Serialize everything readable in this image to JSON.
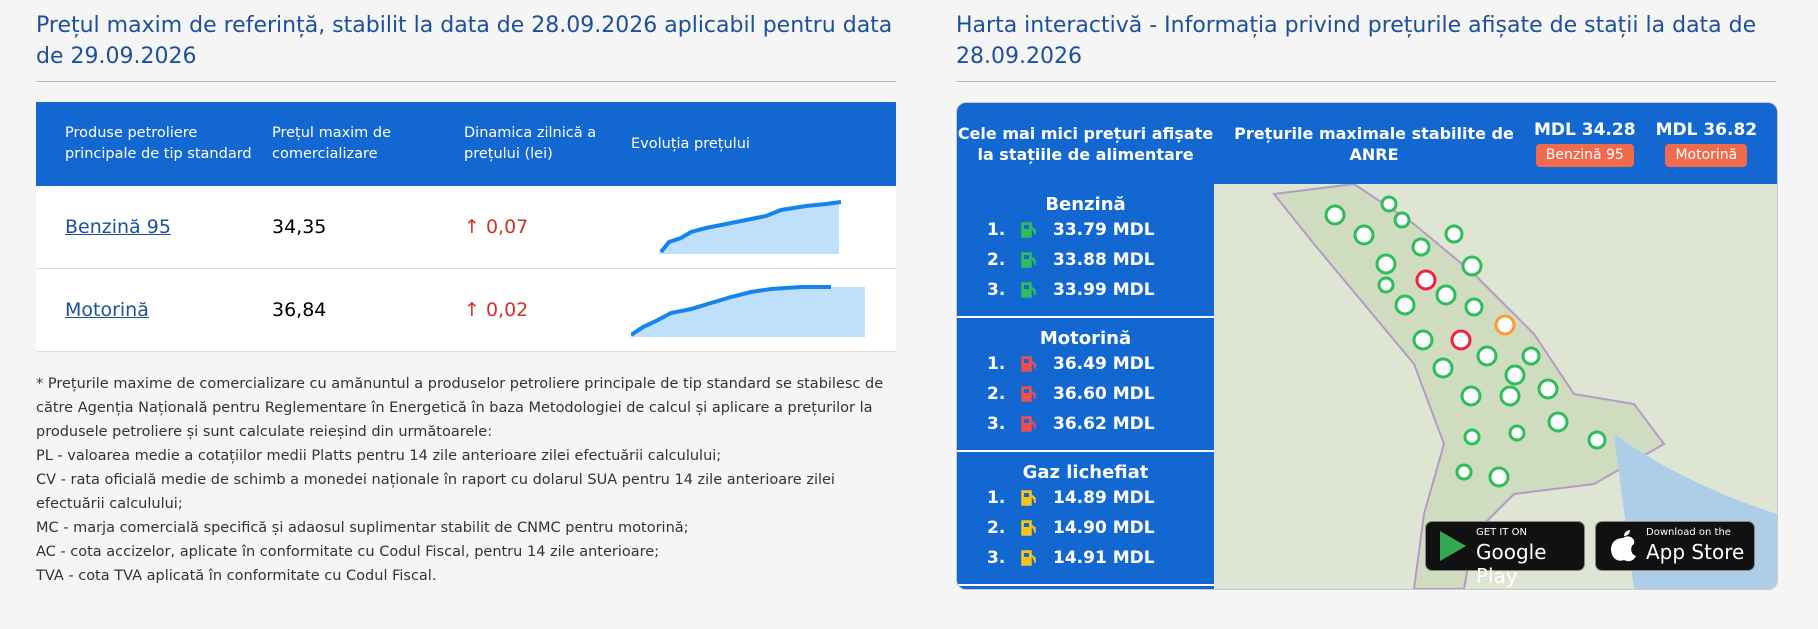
{
  "left": {
    "title": "Prețul maxim de referință, stabilit la data de 28.09.2026 aplicabil pentru data de 29.09.2026",
    "table": {
      "headers": [
        "Produse petroliere principale de tip standard",
        "Prețul maxim de comercializare",
        "Dinamica zilnică a prețului (lei)",
        "Evoluția prețului"
      ],
      "rows": [
        {
          "product": "Benzină 95",
          "price": "34,35",
          "change": "↑ 0,07"
        },
        {
          "product": "Motorină",
          "price": "36,84",
          "change": "↑ 0,02"
        }
      ]
    },
    "notes": [
      "* Prețurile maxime de comercializare cu amănuntul a produselor petroliere principale de tip standard se stabilesc de către Agenția Națională pentru Reglementare în Energetică în baza Metodologiei de calcul și aplicare a prețurilor la produsele petroliere și sunt calculate reieșind din următoarele:",
      "PL - valoarea medie a cotațiilor medii Platts pentru 14 zile anterioare zilei efectuării calculului;",
      "CV - rata oficială medie de schimb a monedei naționale în raport cu dolarul SUA pentru 14 zile anterioare zilei efectuării calculului;",
      "MC - marja comercială specifică și adaosul suplimentar stabilit de CNMC pentru motorină;",
      "AC - cota accizelor, aplicate în conformitate cu Codul Fiscal, pentru 14 zile anterioare;",
      "TVA - cota TVA aplicată în conformitate cu Codul Fiscal."
    ]
  },
  "right": {
    "title": "Harta interactivă - Informația privind prețurile afișate de stații la data de 28.09.2026",
    "header": {
      "lowest": "Cele mai mici prețuri afișate la stațiile de alimentare",
      "max": "Prețurile maximale stabilite de ANRE",
      "prices": [
        {
          "price": "MDL 34.28",
          "fuel": "Benzină 95"
        },
        {
          "price": "MDL 36.82",
          "fuel": "Motorină"
        }
      ]
    },
    "fuels": [
      {
        "name": "Benzină",
        "items": [
          {
            "rank": "1.",
            "price": "33.79 MDL"
          },
          {
            "rank": "2.",
            "price": "33.88 MDL"
          },
          {
            "rank": "3.",
            "price": "33.99 MDL"
          }
        ]
      },
      {
        "name": "Motorină",
        "items": [
          {
            "rank": "1.",
            "price": "36.49 MDL"
          },
          {
            "rank": "2.",
            "price": "36.60 MDL"
          },
          {
            "rank": "3.",
            "price": "36.62 MDL"
          }
        ]
      },
      {
        "name": "Gaz lichefiat",
        "items": [
          {
            "rank": "1.",
            "price": "14.89 MDL"
          },
          {
            "rank": "2.",
            "price": "14.90 MDL"
          },
          {
            "rank": "3.",
            "price": "14.91 MDL"
          }
        ]
      }
    ],
    "apps": [
      {
        "small": "GET IT ON",
        "big": "Google Play"
      },
      {
        "small": "Download on the",
        "big": "App Store"
      }
    ]
  }
}
